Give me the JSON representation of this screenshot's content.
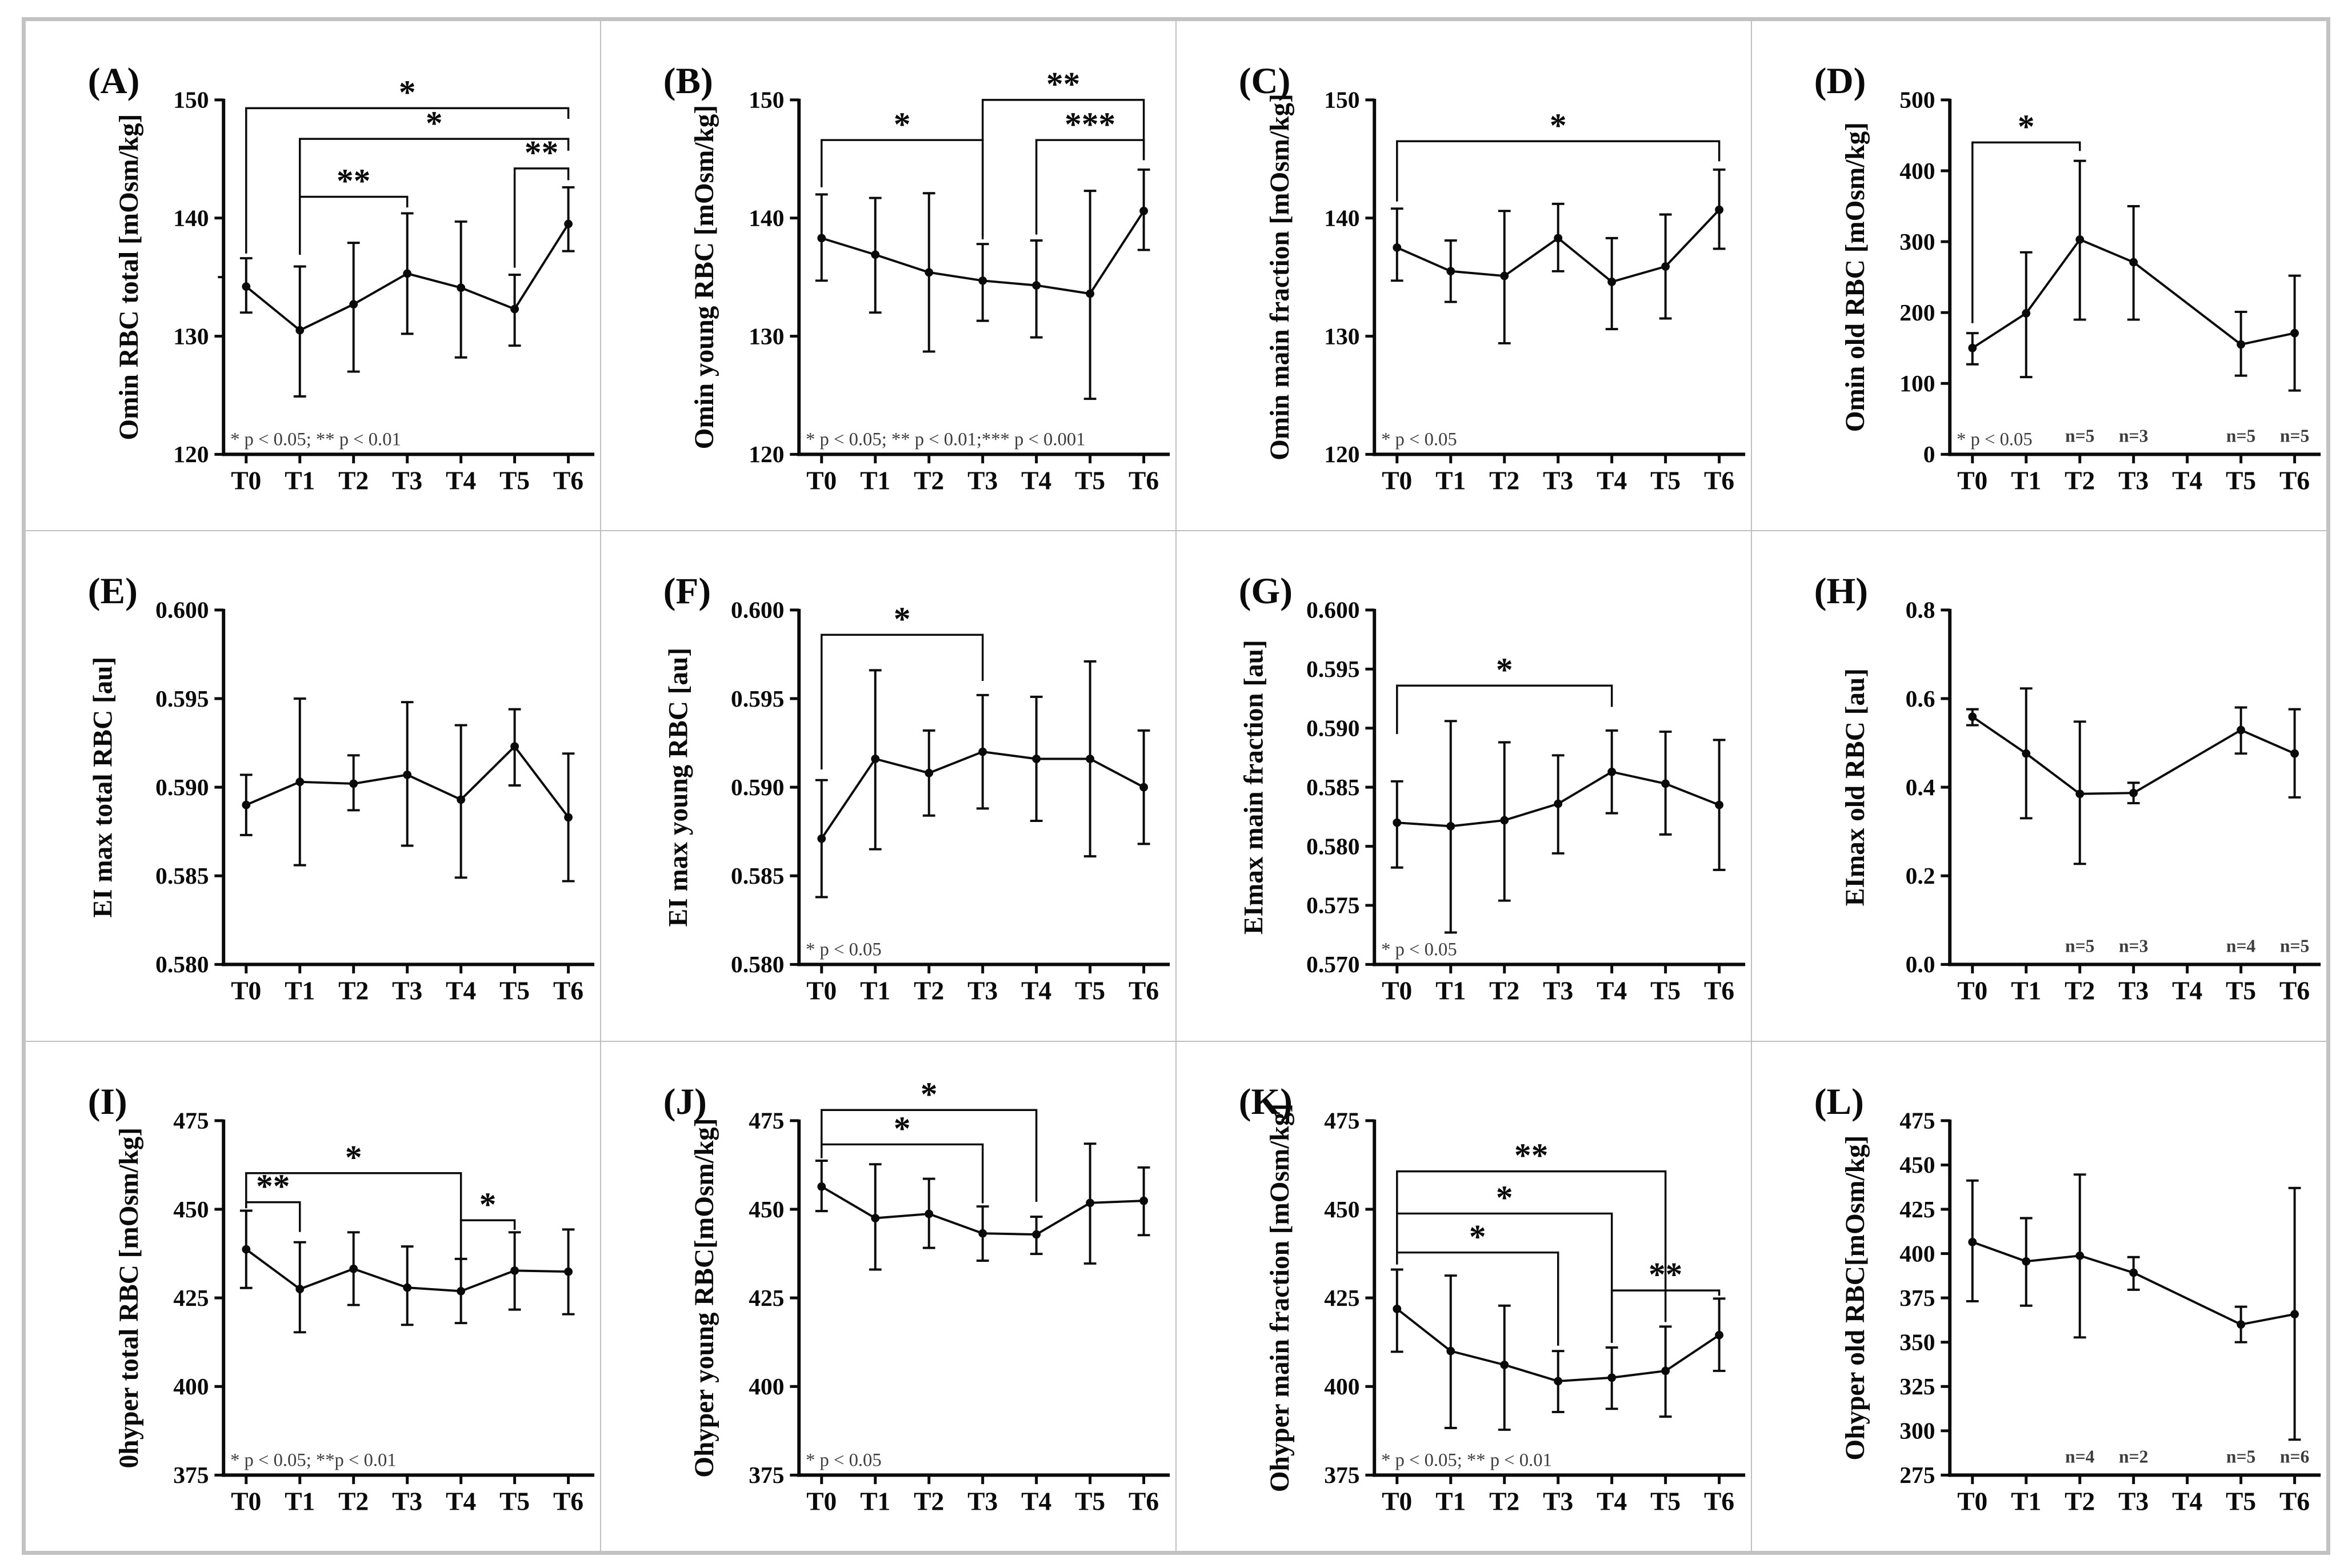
{
  "figure": {
    "background": "#ffffff",
    "outer_border_color": "#c2c2c2",
    "cell_divider_color": "#bfbfbf",
    "ink": "#0a0a0a",
    "muted_ink": "#3d3d3d"
  },
  "categories": [
    "T0",
    "T1",
    "T2",
    "T3",
    "T4",
    "T5",
    "T6"
  ],
  "chart_data": [
    {
      "type": "line",
      "panel": "A",
      "panel_label": "(A)",
      "ylabel": "Omin RBC total [mOsm/kg]",
      "ylim": [
        120,
        150
      ],
      "ytick_values": [
        120,
        130,
        140,
        150
      ],
      "ytick_labels": [
        "120",
        "130",
        "140",
        "150"
      ],
      "minor_yticks": [
        135
      ],
      "values": [
        134.2,
        130.5,
        132.7,
        135.3,
        134.1,
        132.3,
        139.5
      ],
      "err_low": [
        132.0,
        124.9,
        127.0,
        130.2,
        128.2,
        129.2,
        137.2
      ],
      "err_high": [
        136.6,
        135.9,
        137.9,
        140.4,
        139.7,
        135.2,
        142.6
      ],
      "sig_brackets": [
        {
          "x1": 0,
          "x2": 6,
          "label": "*",
          "y": 149.3,
          "d1": 137.0,
          "d2": 148.4
        },
        {
          "x1": 1,
          "x2": 6,
          "label": "*",
          "y": 146.7,
          "d1": 136.9,
          "d2": 145.7
        },
        {
          "x1": 1,
          "x2": 3,
          "label": "**",
          "y": 141.8,
          "d1": 136.9,
          "d2": 140.9
        },
        {
          "x1": 5,
          "x2": 6,
          "label": "**",
          "y": 144.2,
          "d1": 135.8,
          "d2": 143.2
        }
      ],
      "footnote": "* p < 0.05; ** p < 0.01",
      "n_labels": []
    },
    {
      "type": "line",
      "panel": "B",
      "panel_label": "(B)",
      "ylabel": "Omin young RBC [mOsm/kg]",
      "ylim": [
        120,
        150
      ],
      "ytick_values": [
        120,
        130,
        140,
        150
      ],
      "ytick_labels": [
        "120",
        "130",
        "140",
        "150"
      ],
      "minor_yticks": [],
      "values": [
        138.3,
        136.9,
        135.4,
        134.7,
        134.3,
        133.6,
        140.6
      ],
      "err_low": [
        134.7,
        132.0,
        128.7,
        131.3,
        129.9,
        124.7,
        137.3
      ],
      "err_high": [
        142.0,
        141.7,
        142.1,
        137.8,
        138.1,
        142.3,
        144.1
      ],
      "sig_brackets": [
        {
          "x1": 0,
          "x2": 3,
          "label": "*",
          "y": 146.6,
          "d1": 142.6,
          "d2": 138.2
        },
        {
          "x1": 3,
          "x2": 6,
          "label": "**",
          "y": 150.0,
          "d1": 138.4,
          "d2": 144.9
        },
        {
          "x1": 4,
          "x2": 6,
          "label": "***",
          "y": 146.6,
          "d1": 138.6,
          "d2": 144.9
        }
      ],
      "footnote": "* p < 0.05; ** p < 0.01;*** p < 0.001",
      "n_labels": []
    },
    {
      "type": "line",
      "panel": "C",
      "panel_label": "(C)",
      "ylabel": "Omin main fraction [mOsm/kg]",
      "ylim": [
        120,
        150
      ],
      "ytick_values": [
        120,
        130,
        140,
        150
      ],
      "ytick_labels": [
        "120",
        "130",
        "140",
        "150"
      ],
      "minor_yticks": [],
      "values": [
        137.5,
        135.5,
        135.1,
        138.3,
        134.6,
        135.9,
        140.7
      ],
      "err_low": [
        134.7,
        132.9,
        129.4,
        135.5,
        130.6,
        131.5,
        137.4
      ],
      "err_high": [
        140.8,
        138.1,
        140.6,
        141.2,
        138.3,
        140.3,
        144.1
      ],
      "sig_brackets": [
        {
          "x1": 0,
          "x2": 6,
          "label": "*",
          "y": 146.5,
          "d1": 141.4,
          "d2": 144.8
        }
      ],
      "footnote": "* p < 0.05",
      "n_labels": []
    },
    {
      "type": "line",
      "panel": "D",
      "panel_label": "(D)",
      "ylabel": "Omin old RBC [mOsm/kg]",
      "ylim": [
        0,
        500
      ],
      "ytick_values": [
        0,
        100,
        200,
        300,
        400,
        500
      ],
      "ytick_labels": [
        "0",
        "100",
        "200",
        "300",
        "400",
        "500"
      ],
      "minor_yticks": [],
      "values": [
        150,
        199,
        303,
        271,
        null,
        155,
        171
      ],
      "err_low": [
        127,
        109,
        190,
        190,
        null,
        111,
        90
      ],
      "err_high": [
        171,
        285,
        414,
        350,
        null,
        201,
        252
      ],
      "sig_brackets": [
        {
          "x1": 0,
          "x2": 2,
          "label": "*",
          "y": 440,
          "d1": 185,
          "d2": 428
        }
      ],
      "footnote": "* p < 0.05",
      "n_labels": [
        {
          "x": 2,
          "text": "n=5"
        },
        {
          "x": 3,
          "text": "n=3"
        },
        {
          "x": 5,
          "text": "n=5"
        },
        {
          "x": 6,
          "text": "n=5"
        }
      ]
    },
    {
      "type": "line",
      "panel": "E",
      "panel_label": "(E)",
      "ylabel": "EI max total RBC [au]",
      "ylim": [
        0.58,
        0.6
      ],
      "ytick_values": [
        0.58,
        0.585,
        0.59,
        0.595,
        0.6
      ],
      "ytick_labels": [
        "0.580",
        "0.585",
        "0.590",
        "0.595",
        "0.600"
      ],
      "minor_yticks": [],
      "values": [
        0.589,
        0.5903,
        0.5902,
        0.5907,
        0.5893,
        0.5923,
        0.5883
      ],
      "err_low": [
        0.5873,
        0.5856,
        0.5887,
        0.5867,
        0.5849,
        0.5901,
        0.5847
      ],
      "err_high": [
        0.5907,
        0.595,
        0.5918,
        0.5948,
        0.5935,
        0.5944,
        0.5919
      ],
      "sig_brackets": [],
      "footnote": "",
      "n_labels": []
    },
    {
      "type": "line",
      "panel": "F",
      "panel_label": "(F)",
      "ylabel": "EI max young RBC [au]",
      "ylim": [
        0.58,
        0.6
      ],
      "ytick_values": [
        0.58,
        0.585,
        0.59,
        0.595,
        0.6
      ],
      "ytick_labels": [
        "0.580",
        "0.585",
        "0.590",
        "0.595",
        "0.600"
      ],
      "minor_yticks": [],
      "values": [
        0.5871,
        0.5916,
        0.5908,
        0.592,
        0.5916,
        0.5916,
        0.59
      ],
      "err_low": [
        0.5838,
        0.5865,
        0.5884,
        0.5888,
        0.5881,
        0.5861,
        0.5868
      ],
      "err_high": [
        0.5904,
        0.5966,
        0.5932,
        0.5952,
        0.5951,
        0.5971,
        0.5932
      ],
      "sig_brackets": [
        {
          "x1": 0,
          "x2": 3,
          "label": "*",
          "y": 0.5986,
          "d1": 0.591,
          "d2": 0.596
        }
      ],
      "footnote": "* p < 0.05",
      "n_labels": []
    },
    {
      "type": "line",
      "panel": "G",
      "panel_label": "(G)",
      "ylabel": "EImax main fraction [au]",
      "ylim": [
        0.57,
        0.6
      ],
      "ytick_values": [
        0.57,
        0.575,
        0.58,
        0.585,
        0.59,
        0.595,
        0.6
      ],
      "ytick_labels": [
        "0.570",
        "0.575",
        "0.580",
        "0.585",
        "0.590",
        "0.595",
        "0.600"
      ],
      "minor_yticks": [],
      "values": [
        0.582,
        0.5817,
        0.5822,
        0.5836,
        0.5863,
        0.5853,
        0.5835
      ],
      "err_low": [
        0.5782,
        0.5727,
        0.5754,
        0.5794,
        0.5828,
        0.581,
        0.578
      ],
      "err_high": [
        0.5855,
        0.5906,
        0.5888,
        0.5877,
        0.5898,
        0.5897,
        0.589
      ],
      "sig_brackets": [
        {
          "x1": 0,
          "x2": 4,
          "label": "*",
          "y": 0.5936,
          "d1": 0.5895,
          "d2": 0.5918
        }
      ],
      "footnote": "* p < 0.05",
      "n_labels": []
    },
    {
      "type": "line",
      "panel": "H",
      "panel_label": "(H)",
      "ylabel": "EImax old RBC [au]",
      "ylim": [
        0.0,
        0.8
      ],
      "ytick_values": [
        0.0,
        0.2,
        0.4,
        0.6,
        0.8
      ],
      "ytick_labels": [
        "0.0",
        "0.2",
        "0.4",
        "0.6",
        "0.8"
      ],
      "minor_yticks": [],
      "values": [
        0.559,
        0.476,
        0.385,
        0.387,
        null,
        0.529,
        0.476
      ],
      "err_low": [
        0.54,
        0.33,
        0.227,
        0.364,
        null,
        0.476,
        0.377
      ],
      "err_high": [
        0.576,
        0.623,
        0.548,
        0.41,
        null,
        0.58,
        0.576
      ],
      "sig_brackets": [],
      "footnote": "",
      "n_labels": [
        {
          "x": 2,
          "text": "n=5"
        },
        {
          "x": 3,
          "text": "n=3"
        },
        {
          "x": 5,
          "text": "n=4"
        },
        {
          "x": 6,
          "text": "n=5"
        }
      ]
    },
    {
      "type": "line",
      "panel": "I",
      "panel_label": "(I)",
      "ylabel": "0hyper total  RBC [mOsm/kg]",
      "ylim": [
        375,
        475
      ],
      "ytick_values": [
        375,
        400,
        425,
        450,
        475
      ],
      "ytick_labels": [
        "375",
        "400",
        "425",
        "450",
        "475"
      ],
      "minor_yticks": [],
      "values": [
        438.7,
        427.5,
        433.2,
        427.9,
        426.9,
        432.7,
        432.4
      ],
      "err_low": [
        427.8,
        415.3,
        423.0,
        417.4,
        417.9,
        421.7,
        420.4
      ],
      "err_high": [
        449.6,
        440.7,
        443.5,
        439.5,
        436.0,
        443.5,
        444.3
      ],
      "sig_brackets": [
        {
          "x1": 0,
          "x2": 1,
          "label": "**",
          "y": 452.0,
          "d1": 450.3,
          "d2": 443.6
        },
        {
          "x1": 0,
          "x2": 4,
          "label": "*",
          "y": 460.2,
          "d1": 450.3,
          "d2": 436.5
        },
        {
          "x1": 4,
          "x2": 5,
          "label": "*",
          "y": 446.9,
          "d1": 436.3,
          "d2": 444.2
        }
      ],
      "footnote": "* p < 0.05; **p < 0.01",
      "n_labels": []
    },
    {
      "type": "line",
      "panel": "J",
      "panel_label": "(J)",
      "ylabel": "Ohyper young RBC[mOsm/kg]",
      "ylim": [
        375,
        475
      ],
      "ytick_values": [
        375,
        400,
        425,
        450,
        475
      ],
      "ytick_labels": [
        "375",
        "400",
        "425",
        "450",
        "475"
      ],
      "minor_yticks": [],
      "values": [
        456.4,
        447.5,
        448.7,
        443.2,
        442.9,
        451.8,
        452.4
      ],
      "err_low": [
        449.5,
        433.0,
        439.1,
        435.5,
        437.4,
        434.7,
        442.7
      ],
      "err_high": [
        463.7,
        462.7,
        458.6,
        450.8,
        447.9,
        468.5,
        461.8
      ],
      "sig_brackets": [
        {
          "x1": 0,
          "x2": 3,
          "label": "*",
          "y": 468.3,
          "d1": 464.4,
          "d2": 451.7
        },
        {
          "x1": 0,
          "x2": 4,
          "label": "*",
          "y": 478.0,
          "d1": 468.3,
          "d2": 452.1
        }
      ],
      "footnote": "* p < 0.05",
      "n_labels": []
    },
    {
      "type": "line",
      "panel": "K",
      "panel_label": "(K)",
      "ylabel": "Ohyper main fraction [mOsm/kg]",
      "ylim": [
        375,
        475
      ],
      "ytick_values": [
        375,
        400,
        425,
        450,
        475
      ],
      "ytick_labels": [
        "375",
        "400",
        "425",
        "450",
        "475"
      ],
      "minor_yticks": [],
      "values": [
        421.9,
        410.0,
        406.1,
        401.5,
        402.5,
        404.4,
        414.5
      ],
      "err_low": [
        409.8,
        388.3,
        387.8,
        392.8,
        393.7,
        391.5,
        404.4
      ],
      "err_high": [
        433.0,
        431.3,
        422.8,
        410.0,
        411.0,
        416.9,
        424.8
      ],
      "sig_brackets": [
        {
          "x1": 0,
          "x2": 3,
          "label": "*",
          "y": 437.8,
          "d1": 434.4,
          "d2": 411.5
        },
        {
          "x1": 0,
          "x2": 4,
          "label": "*",
          "y": 448.8,
          "d1": 437.8,
          "d2": 412.3
        },
        {
          "x1": 0,
          "x2": 5,
          "label": "**",
          "y": 460.7,
          "d1": 448.8,
          "d2": 418.2
        },
        {
          "x1": 4,
          "x2": 6,
          "label": "**",
          "y": 427.1,
          "d1": 412.3,
          "d2": 425.6
        }
      ],
      "footnote": "* p < 0.05; ** p < 0.01",
      "n_labels": []
    },
    {
      "type": "line",
      "panel": "L",
      "panel_label": "(L)",
      "ylabel": "Ohyper old RBC[mOsm/kg]",
      "ylim": [
        275,
        475
      ],
      "ytick_values": [
        275,
        300,
        325,
        350,
        375,
        400,
        425,
        450,
        475
      ],
      "ytick_labels": [
        "275",
        "300",
        "325",
        "350",
        "375",
        "400",
        "425",
        "450",
        "475"
      ],
      "minor_yticks": [],
      "values": [
        406.5,
        395.6,
        398.8,
        389.2,
        null,
        360.0,
        365.8
      ],
      "err_low": [
        373.1,
        370.6,
        352.7,
        379.6,
        null,
        350.0,
        295.0
      ],
      "err_high": [
        441.2,
        420.0,
        444.6,
        398.0,
        null,
        370.0,
        437.0
      ],
      "sig_brackets": [],
      "footnote": "",
      "n_labels": [
        {
          "x": 2,
          "text": "n=4"
        },
        {
          "x": 3,
          "text": "n=2"
        },
        {
          "x": 5,
          "text": "n=5"
        },
        {
          "x": 6,
          "text": "n=6"
        }
      ]
    }
  ]
}
